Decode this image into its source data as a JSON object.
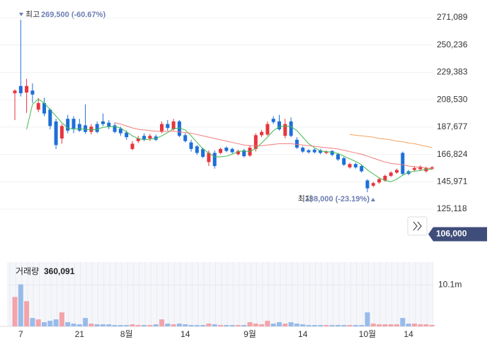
{
  "chart_data": [
    {
      "type": "candlestick",
      "open": [
        213500,
        219000,
        214000,
        215500,
        201000,
        206000,
        201000,
        192000,
        179000,
        194000,
        194000,
        190000,
        189000,
        184000,
        190000,
        192000,
        191000,
        189000,
        186500,
        183500,
        171000,
        177000,
        181000,
        179000,
        180500,
        184000,
        190000,
        186000,
        192000,
        181500,
        176000,
        173000,
        171000,
        161000,
        168000,
        168000,
        172000,
        171000,
        167000,
        170000,
        166000,
        171000,
        181500,
        182000,
        194000,
        192000,
        181000,
        192000,
        178000,
        172000,
        170000,
        170500,
        170000,
        168000,
        169500,
        167000,
        164000,
        157000,
        159500,
        158000,
        147000,
        143000,
        145500,
        147000,
        150500,
        153000,
        168000,
        154000,
        155000,
        155500,
        154000,
        156000
      ],
      "high": [
        216500,
        269500,
        224500,
        221000,
        210000,
        210000,
        202000,
        194000,
        190000,
        197000,
        196000,
        194000,
        205000,
        190000,
        192000,
        198000,
        193000,
        191000,
        188000,
        185000,
        177000,
        181000,
        183000,
        182500,
        182000,
        192000,
        193000,
        194000,
        193000,
        183000,
        178000,
        174000,
        172000,
        170000,
        170000,
        172000,
        173000,
        172000,
        170500,
        171000,
        174000,
        183000,
        185500,
        192000,
        196000,
        197000,
        194000,
        195000,
        180000,
        173000,
        171000,
        171500,
        171000,
        170000,
        170000,
        168000,
        165000,
        160500,
        160500,
        159000,
        148000,
        146000,
        149000,
        151500,
        154000,
        156000,
        169000,
        155000,
        158000,
        158500,
        157500,
        158000
      ],
      "low": [
        193000,
        211000,
        198500,
        206000,
        199000,
        196000,
        186000,
        171000,
        175000,
        183000,
        183000,
        184000,
        182500,
        182000,
        183000,
        188500,
        186000,
        183000,
        181000,
        178000,
        170000,
        175500,
        177000,
        177000,
        177000,
        183000,
        185000,
        185000,
        180000,
        176000,
        169000,
        166500,
        164000,
        158000,
        156000,
        167000,
        168500,
        167500,
        166000,
        164500,
        165000,
        169000,
        180000,
        181000,
        190000,
        185000,
        179000,
        180000,
        171000,
        168000,
        167500,
        167500,
        167000,
        167000,
        165500,
        162000,
        158000,
        156000,
        156000,
        153000,
        138000,
        142000,
        144500,
        146000,
        149500,
        152000,
        151000,
        151000,
        154000,
        154500,
        153000,
        155000
      ],
      "close": [
        215500,
        213500,
        219000,
        212500,
        206000,
        198000,
        188500,
        174000,
        188500,
        185000,
        186500,
        185000,
        184000,
        188000,
        184000,
        190000,
        188000,
        184000,
        183000,
        180000,
        175000,
        179000,
        178500,
        181000,
        178000,
        190000,
        187000,
        192000,
        181000,
        177000,
        171000,
        168000,
        165000,
        168000,
        158000,
        171000,
        169500,
        168500,
        169500,
        165500,
        172000,
        181500,
        184000,
        190000,
        191500,
        186000,
        190000,
        181000,
        172000,
        169000,
        168500,
        168500,
        168000,
        169000,
        166500,
        163000,
        159000,
        159500,
        157000,
        154000,
        141000,
        145000,
        148000,
        150500,
        153000,
        155000,
        152000,
        152000,
        156500,
        157500,
        156500,
        157000
      ],
      "up_color": "#e8353d",
      "down_color": "#1d6fd8",
      "series": [
        {
          "color": "#3fb950",
          "values": [
            null,
            null,
            186000,
            205000,
            209000,
            206000,
            201000,
            196000,
            191000,
            187000,
            186000,
            186500,
            186000,
            185500,
            186000,
            187500,
            188000,
            188000,
            187000,
            184000,
            181000,
            179000,
            178000,
            178500,
            179000,
            181000,
            183500,
            186500,
            187000,
            185500,
            181000,
            176000,
            171000,
            168000,
            165000,
            165000,
            165500,
            167000,
            169000,
            169500,
            169000,
            171500,
            175500,
            180000,
            185000,
            188000,
            188500,
            188000,
            185000,
            180000,
            175000,
            172000,
            169500,
            169000,
            168500,
            167500,
            165500,
            163500,
            161500,
            159000,
            155000,
            152000,
            149000,
            147000,
            146000,
            148000,
            151000,
            153000,
            154000,
            154500,
            155500,
            155500
          ]
        },
        {
          "color": "#f07c7c",
          "values": [
            null,
            null,
            null,
            null,
            null,
            null,
            null,
            null,
            null,
            null,
            null,
            null,
            null,
            null,
            null,
            null,
            null,
            191000,
            190000,
            188500,
            187000,
            186000,
            185500,
            185000,
            184500,
            184500,
            184500,
            184500,
            184000,
            183500,
            183000,
            182000,
            181000,
            180000,
            179000,
            178000,
            177000,
            176000,
            175000,
            174000,
            173500,
            173500,
            173500,
            174000,
            174500,
            175000,
            175000,
            175000,
            174500,
            174000,
            173500,
            173000,
            172500,
            172000,
            171500,
            171000,
            170000,
            169000,
            168000,
            167000,
            165500,
            164000,
            162500,
            161000,
            160000,
            159500,
            159000,
            158000,
            157500,
            157000,
            156500,
            156000
          ]
        },
        {
          "color": "#f5a45c",
          "values": [
            null,
            null,
            null,
            null,
            null,
            null,
            null,
            null,
            null,
            null,
            null,
            null,
            null,
            null,
            null,
            null,
            null,
            null,
            null,
            null,
            null,
            null,
            null,
            null,
            null,
            null,
            null,
            null,
            null,
            null,
            null,
            null,
            null,
            null,
            null,
            null,
            null,
            null,
            null,
            null,
            null,
            null,
            null,
            null,
            null,
            null,
            null,
            null,
            null,
            null,
            null,
            null,
            null,
            null,
            null,
            null,
            null,
            182000,
            181500,
            181000,
            180500,
            180000,
            179000,
            178500,
            178000,
            177000,
            176500,
            175500,
            175000,
            174000,
            173000,
            172000
          ]
        }
      ],
      "ylim": [
        100000,
        280000
      ],
      "yticks": [
        {
          "value": 125118,
          "label": "125,118"
        },
        {
          "value": 145971,
          "label": "145,971"
        },
        {
          "value": 166824,
          "label": "166,824"
        },
        {
          "value": 187677,
          "label": "187,677"
        },
        {
          "value": 208530,
          "label": "208,530"
        },
        {
          "value": 229383,
          "label": "229,383"
        },
        {
          "value": 250236,
          "label": "250,236"
        },
        {
          "value": 271089,
          "label": "271,089"
        }
      ],
      "grid": true,
      "annotations": [
        {
          "label": "최고",
          "text": "269,500 (-60.67%)"
        },
        {
          "label": "최저",
          "text": "138,000 (-23.19%)"
        }
      ],
      "current_price": {
        "value": 106000,
        "label": "106,000"
      }
    },
    {
      "type": "bar",
      "title": "거래량",
      "title_value": "360,091",
      "categories": [
        null,
        "7",
        null,
        null,
        null,
        null,
        null,
        null,
        null,
        null,
        null,
        "21",
        null,
        null,
        null,
        null,
        null,
        null,
        null,
        "8월",
        null,
        null,
        null,
        null,
        null,
        null,
        null,
        null,
        null,
        "14",
        null,
        null,
        null,
        null,
        null,
        null,
        null,
        null,
        null,
        null,
        "9월",
        null,
        null,
        null,
        null,
        null,
        null,
        null,
        null,
        "14",
        null,
        null,
        null,
        null,
        null,
        null,
        null,
        null,
        null,
        null,
        "10월",
        null,
        null,
        null,
        null,
        null,
        null,
        "14",
        null,
        null,
        null,
        null
      ],
      "values": [
        7140000,
        10200000,
        6120000,
        2040000,
        1700000,
        1020000,
        1360000,
        1700000,
        3400000,
        1020000,
        680000,
        510000,
        2040000,
        680000,
        510000,
        510000,
        510000,
        340000,
        340000,
        340000,
        510000,
        340000,
        340000,
        340000,
        510000,
        1700000,
        680000,
        510000,
        680000,
        510000,
        340000,
        340000,
        340000,
        680000,
        510000,
        340000,
        340000,
        340000,
        340000,
        340000,
        1020000,
        680000,
        510000,
        1360000,
        680000,
        1020000,
        680000,
        1020000,
        680000,
        510000,
        340000,
        340000,
        340000,
        340000,
        340000,
        340000,
        340000,
        340000,
        340000,
        340000,
        3400000,
        680000,
        510000,
        510000,
        510000,
        510000,
        2040000,
        680000,
        680000,
        510000,
        510000,
        360091
      ],
      "up_color": "#f3a3aa",
      "down_color": "#98bbea",
      "ylim": [
        0,
        15600000
      ],
      "yticks": [
        {
          "value": 10100000,
          "label": "10.1m"
        }
      ]
    }
  ]
}
